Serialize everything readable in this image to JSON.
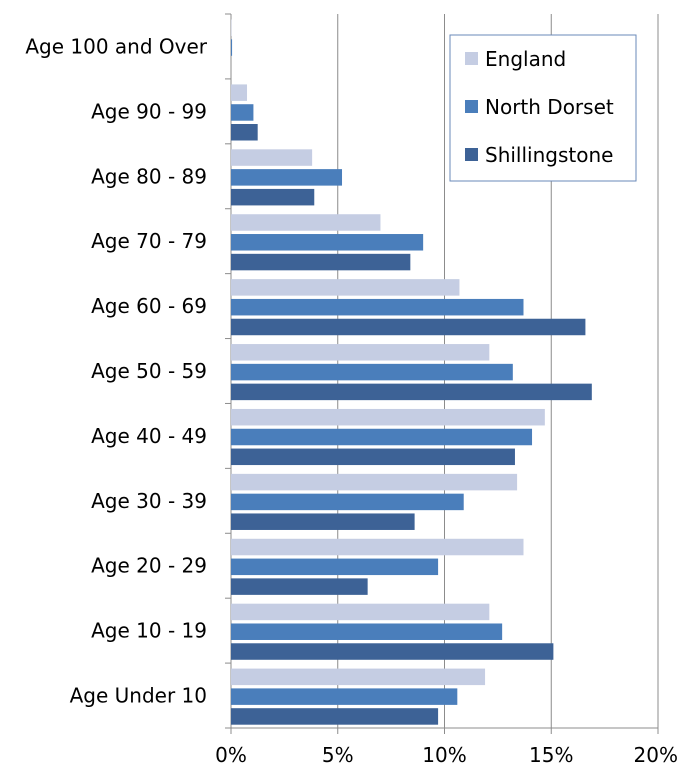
{
  "chart_data": {
    "type": "bar",
    "orientation": "horizontal",
    "title": "",
    "xlabel": "",
    "ylabel": "",
    "xlim": [
      0,
      20
    ],
    "x_ticks": [
      0,
      5,
      10,
      15,
      20
    ],
    "x_tick_labels": [
      "0%",
      "5%",
      "10%",
      "15%",
      "20%"
    ],
    "grid": true,
    "legend_position": "top-right",
    "categories": [
      "Age 100 and Over",
      "Age 90 - 99",
      "Age 80 - 89",
      "Age 70 - 79",
      "Age 60 - 69",
      "Age 50 - 59",
      "Age 40 - 49",
      "Age 30 - 39",
      "Age 20 - 29",
      "Age 10 - 19",
      "Age Under 10"
    ],
    "series": [
      {
        "name": "England",
        "color": "#c5cde3",
        "values": [
          0.02,
          0.75,
          3.8,
          7.0,
          10.7,
          12.1,
          14.7,
          13.4,
          13.7,
          12.1,
          11.9
        ]
      },
      {
        "name": "North Dorset",
        "color": "#4a7ebb",
        "values": [
          0.05,
          1.05,
          5.2,
          9.0,
          13.7,
          13.2,
          14.1,
          10.9,
          9.7,
          12.7,
          10.6
        ]
      },
      {
        "name": "Shillingstone",
        "color": "#3d6296",
        "values": [
          0.0,
          1.25,
          3.9,
          8.4,
          16.6,
          16.9,
          13.3,
          8.6,
          6.4,
          15.1,
          9.7
        ]
      }
    ]
  }
}
